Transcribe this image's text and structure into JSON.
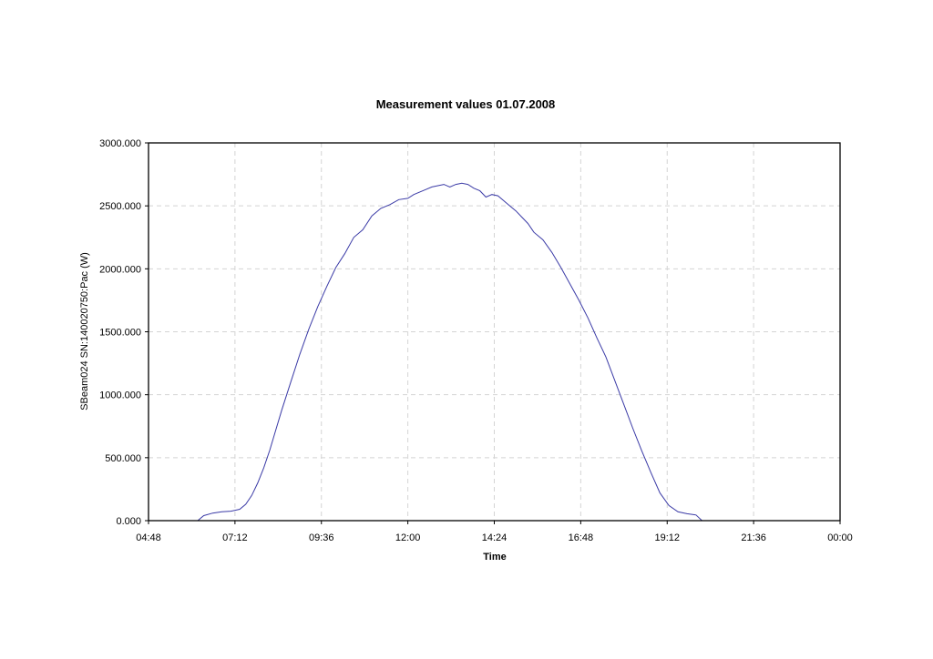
{
  "chart_data": {
    "type": "line",
    "title": "Measurement values 01.07.2008",
    "xlabel": "Time",
    "ylabel": "SBeam024 SN:140020750:Pac (W)",
    "x_tick_labels": [
      "04:48",
      "07:12",
      "09:36",
      "12:00",
      "14:24",
      "16:48",
      "19:12",
      "21:36",
      "00:00"
    ],
    "y_tick_labels": [
      "0.000",
      "500.000",
      "1000.000",
      "1500.000",
      "2000.000",
      "2500.000",
      "3000.000"
    ],
    "xlim": [
      "04:48",
      "00:00"
    ],
    "ylim": [
      0,
      3000
    ],
    "grid": true,
    "series": [
      {
        "color": "#3a3aa6",
        "x": [
          "06:10",
          "06:20",
          "06:35",
          "06:50",
          "07:05",
          "07:20",
          "07:30",
          "07:40",
          "07:50",
          "08:00",
          "08:10",
          "08:20",
          "08:30",
          "08:45",
          "09:00",
          "09:15",
          "09:30",
          "09:45",
          "10:00",
          "10:15",
          "10:30",
          "10:45",
          "11:00",
          "11:15",
          "11:30",
          "11:45",
          "12:00",
          "12:10",
          "12:20",
          "12:30",
          "12:40",
          "12:50",
          "13:00",
          "13:10",
          "13:20",
          "13:30",
          "13:40",
          "13:50",
          "14:00",
          "14:10",
          "14:20",
          "14:30",
          "14:40",
          "14:50",
          "15:00",
          "15:10",
          "15:20",
          "15:30",
          "15:45",
          "16:00",
          "16:15",
          "16:30",
          "16:45",
          "17:00",
          "17:15",
          "17:30",
          "17:45",
          "18:00",
          "18:15",
          "18:30",
          "18:45",
          "19:00",
          "19:15",
          "19:30",
          "19:45",
          "20:00",
          "20:10",
          "20:20",
          "20:30",
          "20:40",
          "20:50",
          "21:00",
          "21:10",
          "21:20"
        ],
        "y": [
          0,
          40,
          60,
          70,
          75,
          90,
          130,
          200,
          300,
          420,
          560,
          720,
          880,
          1100,
          1320,
          1520,
          1700,
          1860,
          2010,
          2120,
          2250,
          2310,
          2420,
          2480,
          2510,
          2550,
          2560,
          2590,
          2610,
          2630,
          2650,
          2660,
          2670,
          2650,
          2670,
          2680,
          2670,
          2640,
          2620,
          2570,
          2590,
          2580,
          2540,
          2500,
          2460,
          2410,
          2360,
          2290,
          2230,
          2130,
          2010,
          1880,
          1750,
          1610,
          1450,
          1300,
          1110,
          920,
          730,
          550,
          380,
          220,
          120,
          70,
          55,
          45,
          0,
          0,
          0,
          0,
          0,
          0,
          0,
          0
        ]
      }
    ]
  }
}
